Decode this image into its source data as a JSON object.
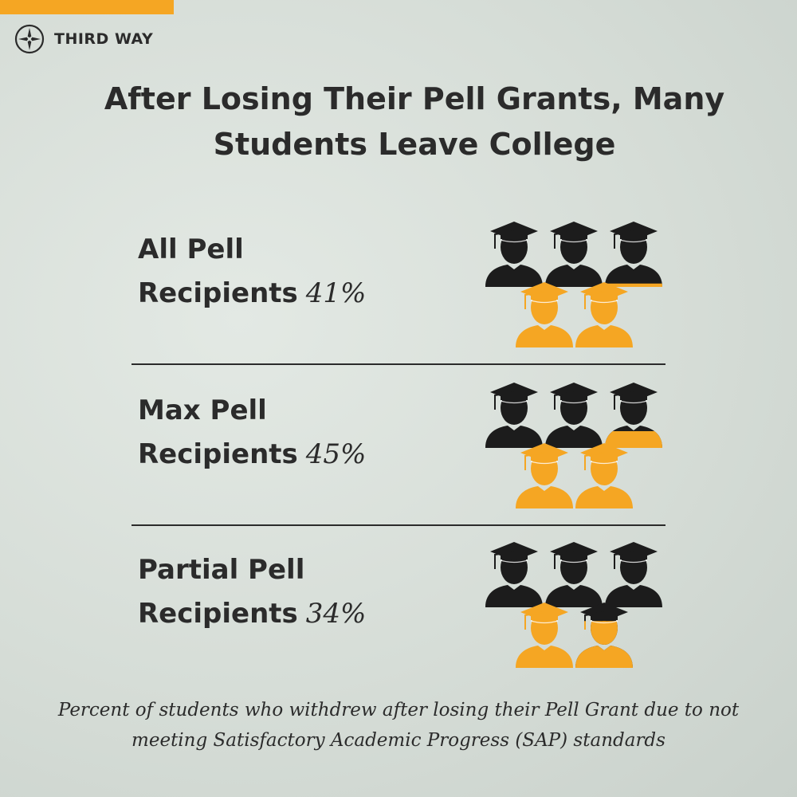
{
  "brand": {
    "name": "THIRD WAY",
    "logo_icon": "compass-star-icon"
  },
  "colors": {
    "accent": "#f5a623",
    "dark": "#2b2b2b"
  },
  "chart_data": {
    "type": "pictograph",
    "title": "After Losing Their Pell Grants, Many Students Leave College",
    "categories": [
      "All Pell Recipients",
      "Max Pell Recipients",
      "Partial Pell Recipients"
    ],
    "rows": [
      {
        "label_line1": "All Pell",
        "label_line2": "Recipients",
        "value": 41,
        "value_label": "41%"
      },
      {
        "label_line1": "Max Pell",
        "label_line2": "Recipients",
        "value": 45,
        "value_label": "45%"
      },
      {
        "label_line1": "Partial Pell",
        "label_line2": "Recipients",
        "value": 34,
        "value_label": "34%"
      }
    ],
    "icons_per_row": 5,
    "icon": "graduate-icon",
    "highlight_color": "#f5a623",
    "base_color": "#1c1c1c",
    "caption": "Percent of students who withdrew after losing their Pell Grant due to not meeting Satisfactory Academic Progress (SAP) standards"
  }
}
